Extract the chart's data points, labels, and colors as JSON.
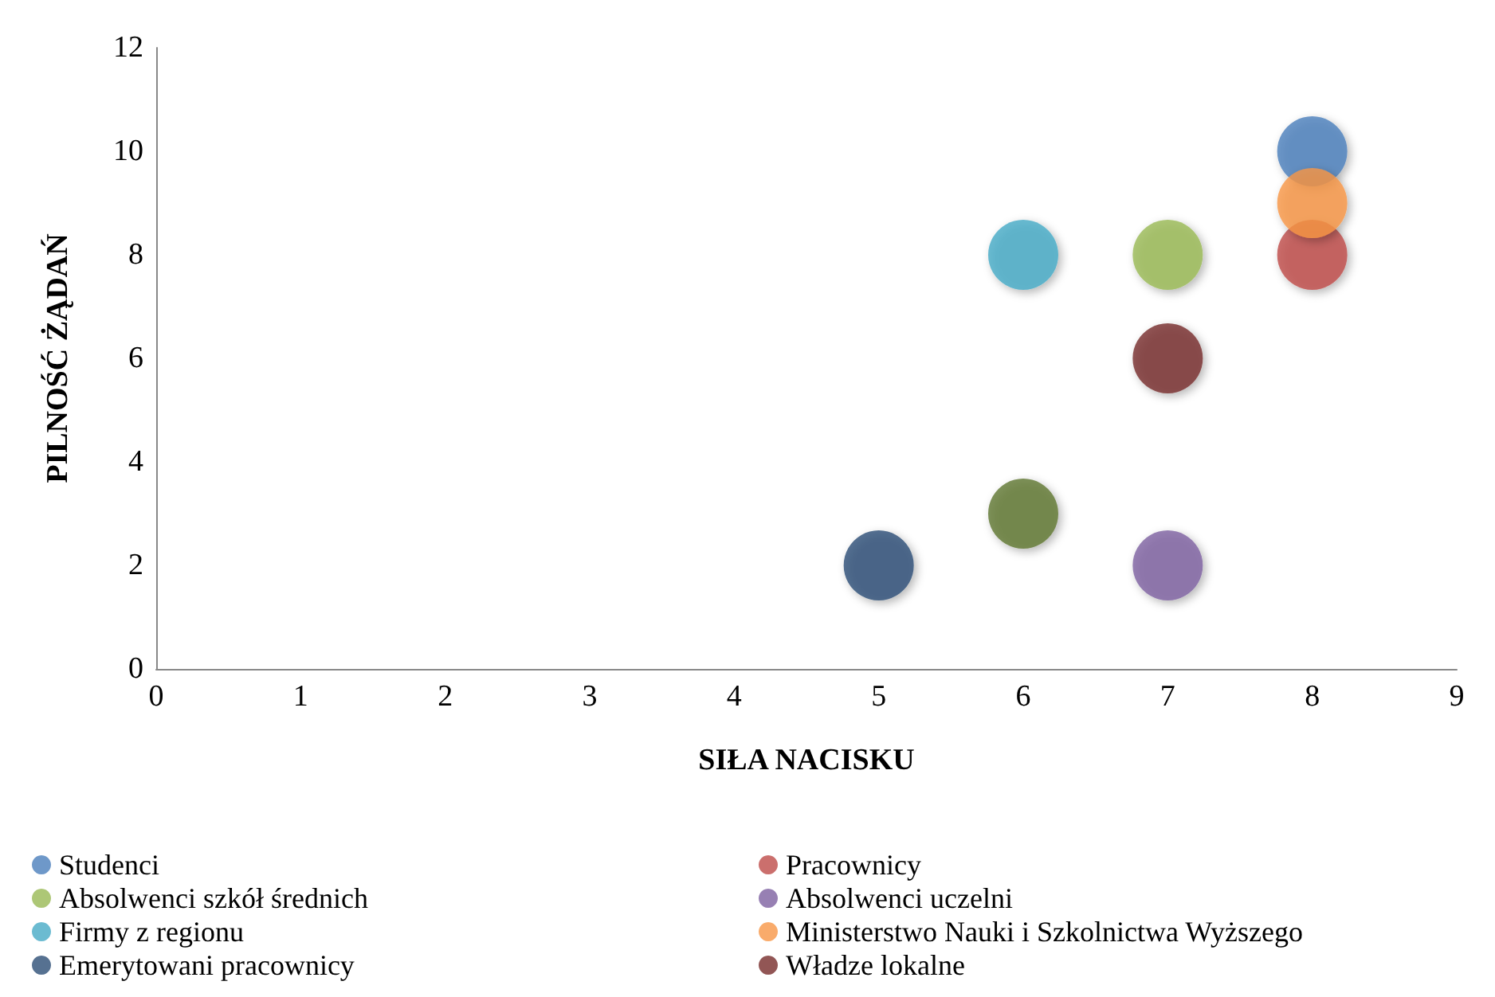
{
  "chart_data": {
    "type": "scatter",
    "xlabel": "SIŁA NACISKU",
    "ylabel": "PILNOŚĆ ŻĄDAŃ",
    "xlim": [
      0,
      9
    ],
    "xticks": [
      0,
      1,
      2,
      3,
      4,
      5,
      6,
      7,
      8,
      9
    ],
    "ylim": [
      0,
      12
    ],
    "yticks": [
      0,
      2,
      4,
      6,
      8,
      10,
      12
    ],
    "grid": false,
    "legend": "bottom",
    "marker": "circle",
    "series": [
      {
        "name": "Studenci",
        "color": "#4a7ebb",
        "x": [
          8
        ],
        "values": [
          10
        ]
      },
      {
        "name": "Pracownicy",
        "color": "#be4b48",
        "x": [
          8
        ],
        "values": [
          8
        ]
      },
      {
        "name": "Absolwenci szkół średnich",
        "color": "#98b954",
        "x": [
          7
        ],
        "values": [
          8
        ]
      },
      {
        "name": "Absolwenci uczelni",
        "color": "#7d60a0",
        "x": [
          7
        ],
        "values": [
          2
        ]
      },
      {
        "name": "Firmy z regionu",
        "color": "#46aac5",
        "x": [
          6
        ],
        "values": [
          8
        ]
      },
      {
        "name": "Ministerstwo Nauki i Szkolnictwa Wyższego",
        "color": "#f79646",
        "x": [
          8
        ],
        "values": [
          9
        ]
      },
      {
        "name": "Emerytowani pracownicy",
        "color": "#2c4d75",
        "x": [
          5
        ],
        "values": [
          2
        ]
      },
      {
        "name": "Władze lokalne",
        "color": "#772c2a",
        "x": [
          7
        ],
        "values": [
          6
        ]
      },
      {
        "color": "#5f7530",
        "x": [
          6
        ],
        "values": [
          3
        ]
      }
    ]
  }
}
